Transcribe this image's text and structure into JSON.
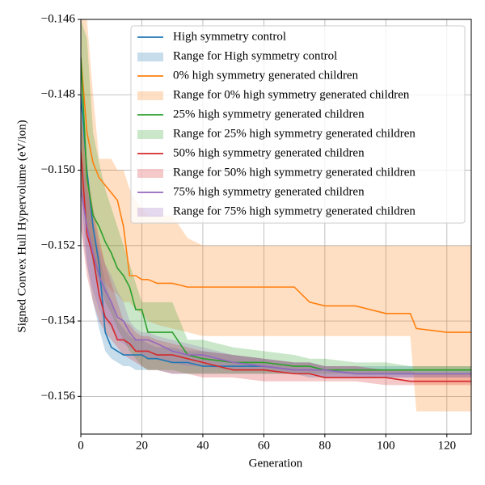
{
  "chart_data": {
    "type": "line",
    "xlabel": "Generation",
    "ylabel": "Signed Convex Hull Hypervolume (eV/ion)",
    "xlim": [
      0,
      128
    ],
    "xticks": [
      0,
      20,
      40,
      60,
      80,
      100,
      120
    ],
    "ylim": [
      -0.157,
      -0.146
    ],
    "yticks": [
      {
        "value": -0.146,
        "label": "−0.146"
      },
      {
        "value": -0.148,
        "label": "−0.148"
      },
      {
        "value": -0.15,
        "label": "−0.150"
      },
      {
        "value": -0.152,
        "label": "−0.152"
      },
      {
        "value": -0.154,
        "label": "−0.154"
      },
      {
        "value": -0.156,
        "label": "−0.156"
      }
    ],
    "grid": true,
    "legend": "upper right",
    "x": [
      0,
      2,
      4,
      6,
      8,
      10,
      12,
      14,
      16,
      18,
      20,
      22,
      25,
      30,
      35,
      40,
      50,
      60,
      70,
      75,
      80,
      90,
      100,
      108,
      110,
      120,
      128
    ],
    "series": [
      {
        "name": "High symmetry control",
        "color": "#1f77b4",
        "values": [
          -0.148,
          -0.15,
          -0.1515,
          -0.1525,
          -0.1543,
          -0.1547,
          -0.1548,
          -0.1549,
          -0.1549,
          -0.1549,
          -0.1549,
          -0.155,
          -0.155,
          -0.1551,
          -0.1551,
          -0.1552,
          -0.1552,
          -0.1552,
          -0.1553,
          -0.1553,
          -0.1553,
          -0.1554,
          -0.1554,
          -0.1554,
          -0.1554,
          -0.1554,
          -0.1554
        ]
      },
      {
        "name": "Range for High symmetry control",
        "color": "#1f77b4",
        "kind": "range",
        "upper": [
          -0.1485,
          -0.15,
          -0.1515,
          -0.1522,
          -0.153,
          -0.1535,
          -0.154,
          -0.1542,
          -0.1544,
          -0.1545,
          -0.1545,
          -0.1546,
          -0.1547,
          -0.1547,
          -0.1548,
          -0.1548,
          -0.1549,
          -0.155,
          -0.1551,
          -0.1551,
          -0.1552,
          -0.1552,
          -0.1552,
          -0.1552,
          -0.1552,
          -0.1552,
          -0.1552
        ],
        "lower": [
          -0.1505,
          -0.1525,
          -0.1535,
          -0.1542,
          -0.1548,
          -0.155,
          -0.1551,
          -0.1552,
          -0.1552,
          -0.1553,
          -0.1553,
          -0.1553,
          -0.1553,
          -0.1554,
          -0.1554,
          -0.1554,
          -0.1554,
          -0.1554,
          -0.1554,
          -0.1555,
          -0.1555,
          -0.1555,
          -0.1555,
          -0.1555,
          -0.1555,
          -0.1555,
          -0.1555
        ]
      },
      {
        "name": "0% high symmetry generated children",
        "color": "#ff7f0e",
        "values": [
          -0.147,
          -0.149,
          -0.1498,
          -0.1502,
          -0.1504,
          -0.1506,
          -0.1508,
          -0.1515,
          -0.1528,
          -0.1528,
          -0.1529,
          -0.1529,
          -0.153,
          -0.153,
          -0.1531,
          -0.1531,
          -0.1531,
          -0.1531,
          -0.1531,
          -0.1535,
          -0.1536,
          -0.1536,
          -0.1538,
          -0.1538,
          -0.1542,
          -0.1543,
          -0.1543
        ]
      },
      {
        "name": "Range for 0% high symmetry generated children",
        "color": "#ff7f0e",
        "kind": "range",
        "upper": [
          -0.146,
          -0.146,
          -0.148,
          -0.1497,
          -0.1497,
          -0.1497,
          -0.15,
          -0.15,
          -0.1505,
          -0.1508,
          -0.151,
          -0.1512,
          -0.1512,
          -0.1512,
          -0.1518,
          -0.152,
          -0.152,
          -0.152,
          -0.152,
          -0.152,
          -0.152,
          -0.152,
          -0.152,
          -0.152,
          -0.152,
          -0.152,
          -0.152
        ],
        "lower": [
          -0.1505,
          -0.1515,
          -0.1525,
          -0.1528,
          -0.153,
          -0.1532,
          -0.1533,
          -0.1535,
          -0.1535,
          -0.1537,
          -0.1538,
          -0.154,
          -0.1541,
          -0.1542,
          -0.1543,
          -0.1544,
          -0.1544,
          -0.1544,
          -0.1544,
          -0.1544,
          -0.1544,
          -0.1544,
          -0.1544,
          -0.1544,
          -0.1564,
          -0.1564,
          -0.1564
        ]
      },
      {
        "name": "25% high symmetry generated children",
        "color": "#2ca02c",
        "values": [
          -0.147,
          -0.1502,
          -0.1512,
          -0.1515,
          -0.1519,
          -0.1522,
          -0.1526,
          -0.1528,
          -0.1531,
          -0.1537,
          -0.1537,
          -0.1543,
          -0.1543,
          -0.1543,
          -0.1549,
          -0.155,
          -0.1551,
          -0.1551,
          -0.1552,
          -0.1552,
          -0.1553,
          -0.1553,
          -0.1553,
          -0.1553,
          -0.1553,
          -0.1553,
          -0.1553
        ]
      },
      {
        "name": "Range for 25% high symmetry generated children",
        "color": "#2ca02c",
        "kind": "range",
        "upper": [
          -0.146,
          -0.1465,
          -0.149,
          -0.1498,
          -0.1505,
          -0.151,
          -0.1515,
          -0.152,
          -0.1525,
          -0.153,
          -0.1535,
          -0.1535,
          -0.1535,
          -0.1535,
          -0.1545,
          -0.1545,
          -0.1547,
          -0.1548,
          -0.1549,
          -0.155,
          -0.155,
          -0.1551,
          -0.1551,
          -0.1552,
          -0.1552,
          -0.1552,
          -0.1552
        ],
        "lower": [
          -0.1505,
          -0.1515,
          -0.1525,
          -0.153,
          -0.1535,
          -0.1538,
          -0.1542,
          -0.1545,
          -0.1548,
          -0.155,
          -0.1552,
          -0.1553,
          -0.1553,
          -0.1553,
          -0.1554,
          -0.1554,
          -0.1554,
          -0.1554,
          -0.1554,
          -0.1554,
          -0.1554,
          -0.1554,
          -0.1554,
          -0.1554,
          -0.1554,
          -0.1554,
          -0.1554
        ]
      },
      {
        "name": "50% high symmetry generated children",
        "color": "#d62728",
        "values": [
          -0.1495,
          -0.1517,
          -0.1523,
          -0.1533,
          -0.1539,
          -0.1541,
          -0.1545,
          -0.1545,
          -0.1546,
          -0.1548,
          -0.1548,
          -0.1548,
          -0.1549,
          -0.1549,
          -0.155,
          -0.1551,
          -0.1553,
          -0.1553,
          -0.1554,
          -0.1554,
          -0.1555,
          -0.1555,
          -0.1555,
          -0.1556,
          -0.1556,
          -0.1556,
          -0.1556
        ]
      },
      {
        "name": "Range for 50% high symmetry generated children",
        "color": "#d62728",
        "kind": "range",
        "upper": [
          -0.1485,
          -0.15,
          -0.151,
          -0.1518,
          -0.1525,
          -0.153,
          -0.1535,
          -0.154,
          -0.1541,
          -0.1543,
          -0.1544,
          -0.1544,
          -0.1545,
          -0.1546,
          -0.1547,
          -0.1548,
          -0.1549,
          -0.155,
          -0.1551,
          -0.1551,
          -0.1552,
          -0.1552,
          -0.1553,
          -0.1553,
          -0.1554,
          -0.1554,
          -0.1554
        ],
        "lower": [
          -0.1515,
          -0.1528,
          -0.1535,
          -0.154,
          -0.1543,
          -0.1545,
          -0.1547,
          -0.1549,
          -0.155,
          -0.1551,
          -0.1552,
          -0.1553,
          -0.1553,
          -0.1554,
          -0.1554,
          -0.1555,
          -0.1555,
          -0.1556,
          -0.1556,
          -0.1556,
          -0.1556,
          -0.1556,
          -0.1557,
          -0.1557,
          -0.1557,
          -0.1557,
          -0.1557
        ]
      },
      {
        "name": "75% high symmetry generated children",
        "color": "#9467bd",
        "values": [
          -0.1505,
          -0.1515,
          -0.1522,
          -0.1528,
          -0.1532,
          -0.1535,
          -0.1539,
          -0.154,
          -0.1543,
          -0.1545,
          -0.1545,
          -0.1545,
          -0.1546,
          -0.1548,
          -0.1549,
          -0.1549,
          -0.1551,
          -0.1552,
          -0.1553,
          -0.1553,
          -0.1553,
          -0.1554,
          -0.1554,
          -0.1554,
          -0.1554,
          -0.1554,
          -0.1554
        ]
      },
      {
        "name": "Range for 75% high symmetry generated children",
        "color": "#9467bd",
        "kind": "range",
        "upper": [
          -0.1495,
          -0.1505,
          -0.1512,
          -0.152,
          -0.1525,
          -0.1528,
          -0.1532,
          -0.1535,
          -0.154,
          -0.1542,
          -0.1543,
          -0.1543,
          -0.1544,
          -0.1545,
          -0.1546,
          -0.1547,
          -0.1549,
          -0.155,
          -0.1551,
          -0.1551,
          -0.1552,
          -0.1552,
          -0.1553,
          -0.1553,
          -0.1553,
          -0.1553,
          -0.1553
        ],
        "lower": [
          -0.1515,
          -0.1525,
          -0.1532,
          -0.1537,
          -0.154,
          -0.1542,
          -0.1545,
          -0.1546,
          -0.1547,
          -0.1548,
          -0.1549,
          -0.155,
          -0.155,
          -0.1551,
          -0.1552,
          -0.1552,
          -0.1553,
          -0.1553,
          -0.1554,
          -0.1554,
          -0.1555,
          -0.1555,
          -0.1555,
          -0.1555,
          -0.1555,
          -0.1555,
          -0.1555
        ]
      }
    ]
  }
}
